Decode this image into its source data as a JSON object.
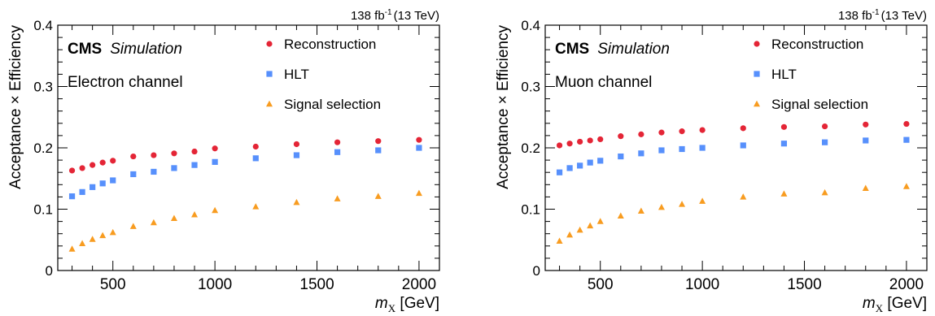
{
  "chart_data": [
    {
      "type": "scatter",
      "lumi_label": "138 fb",
      "lumi_exponent": "-1",
      "energy_label": "(13 TeV)",
      "cms_label": "CMS",
      "sim_label": "Simulation",
      "channel_label": "Electron channel",
      "ylabel": "Acceptance × Efficiency",
      "xlabel_var": "m",
      "xlabel_sub": "X",
      "xlabel_unit": " [GeV]",
      "xlim": [
        230,
        2100
      ],
      "ylim": [
        0,
        0.4
      ],
      "xticks": [
        500,
        1000,
        1500,
        2000
      ],
      "yticks": [
        0,
        0.1,
        0.2,
        0.3,
        0.4
      ],
      "ytick_labels": [
        "0",
        "0.1",
        "0.2",
        "0.3",
        "0.4"
      ],
      "x": [
        300,
        350,
        400,
        450,
        500,
        600,
        700,
        800,
        900,
        1000,
        1200,
        1400,
        1600,
        1800,
        2000
      ],
      "series": [
        {
          "name": "Reconstruction",
          "marker": "circle",
          "color": "#e42536",
          "values": [
            0.163,
            0.167,
            0.172,
            0.176,
            0.179,
            0.186,
            0.188,
            0.191,
            0.194,
            0.199,
            0.202,
            0.206,
            0.209,
            0.211,
            0.213
          ]
        },
        {
          "name": "HLT",
          "marker": "square",
          "color": "#5790fc",
          "values": [
            0.121,
            0.128,
            0.136,
            0.142,
            0.147,
            0.157,
            0.161,
            0.167,
            0.172,
            0.177,
            0.183,
            0.188,
            0.193,
            0.196,
            0.2
          ]
        },
        {
          "name": "Signal selection",
          "marker": "triangle",
          "color": "#f89c20",
          "values": [
            0.035,
            0.044,
            0.051,
            0.057,
            0.062,
            0.072,
            0.078,
            0.085,
            0.091,
            0.098,
            0.104,
            0.111,
            0.117,
            0.121,
            0.126
          ]
        }
      ]
    },
    {
      "type": "scatter",
      "lumi_label": "138 fb",
      "lumi_exponent": "-1",
      "energy_label": "(13 TeV)",
      "cms_label": "CMS",
      "sim_label": "Simulation",
      "channel_label": "Muon channel",
      "ylabel": "Acceptance × Efficiency",
      "xlabel_var": "m",
      "xlabel_sub": "X",
      "xlabel_unit": " [GeV]",
      "xlim": [
        230,
        2100
      ],
      "ylim": [
        0,
        0.4
      ],
      "xticks": [
        500,
        1000,
        1500,
        2000
      ],
      "yticks": [
        0,
        0.1,
        0.2,
        0.3,
        0.4
      ],
      "ytick_labels": [
        "0",
        "0.1",
        "0.2",
        "0.3",
        "0.4"
      ],
      "x": [
        300,
        350,
        400,
        450,
        500,
        600,
        700,
        800,
        900,
        1000,
        1200,
        1400,
        1600,
        1800,
        2000
      ],
      "series": [
        {
          "name": "Reconstruction",
          "marker": "circle",
          "color": "#e42536",
          "values": [
            0.204,
            0.207,
            0.21,
            0.212,
            0.214,
            0.219,
            0.222,
            0.225,
            0.227,
            0.229,
            0.232,
            0.234,
            0.235,
            0.238,
            0.239
          ]
        },
        {
          "name": "HLT",
          "marker": "square",
          "color": "#5790fc",
          "values": [
            0.16,
            0.167,
            0.171,
            0.176,
            0.179,
            0.186,
            0.191,
            0.196,
            0.198,
            0.2,
            0.204,
            0.207,
            0.209,
            0.212,
            0.213
          ]
        },
        {
          "name": "Signal selection",
          "marker": "triangle",
          "color": "#f89c20",
          "values": [
            0.048,
            0.058,
            0.066,
            0.073,
            0.08,
            0.089,
            0.097,
            0.103,
            0.108,
            0.113,
            0.12,
            0.125,
            0.127,
            0.134,
            0.137
          ]
        }
      ]
    }
  ]
}
